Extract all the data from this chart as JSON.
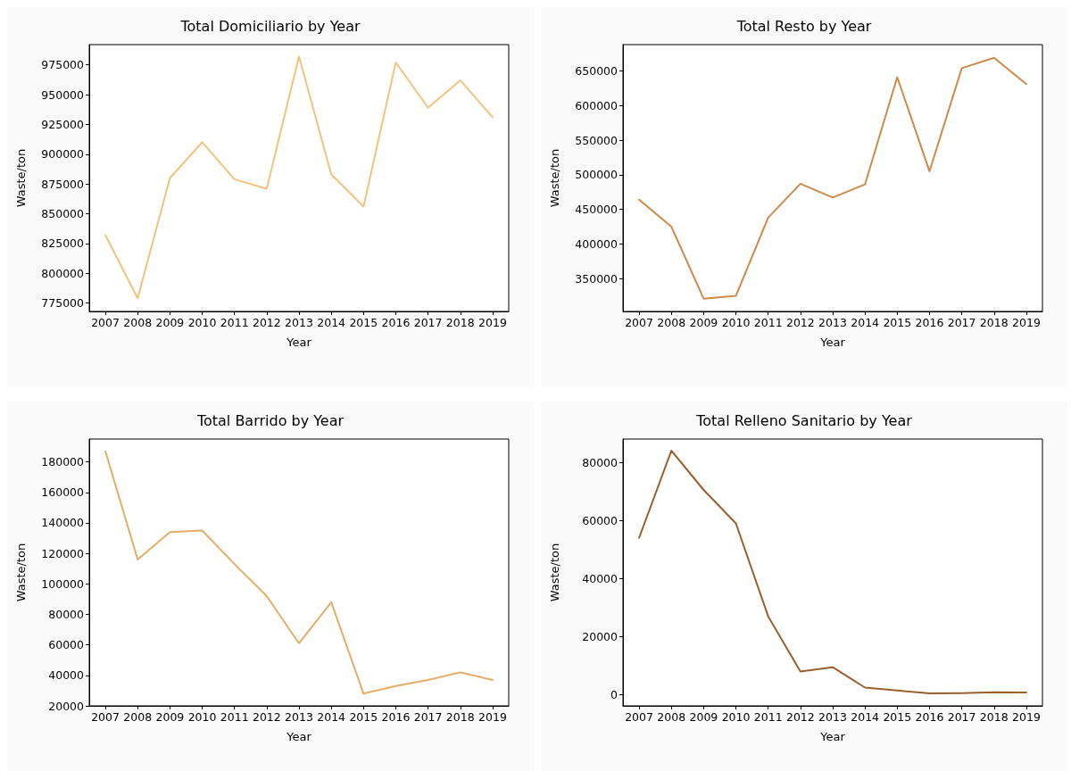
{
  "chart_data": [
    {
      "type": "line",
      "title": "Total Domiciliario by Year",
      "xlabel": "Year",
      "ylabel": "Waste/ton",
      "categories": [
        "2007",
        "2008",
        "2009",
        "2010",
        "2011",
        "2012",
        "2013",
        "2014",
        "2015",
        "2016",
        "2017",
        "2018",
        "2019"
      ],
      "series": [
        {
          "color": "#f2c27f",
          "values": [
            832000,
            779000,
            880000,
            910000,
            879000,
            871000,
            982000,
            883000,
            856000,
            977000,
            939000,
            962000,
            931000
          ]
        }
      ],
      "ylim": [
        768000,
        992000
      ],
      "yticks": [
        775000,
        800000,
        825000,
        850000,
        875000,
        900000,
        925000,
        950000,
        975000
      ],
      "grid": false,
      "marker": "none",
      "line_style": "solid"
    },
    {
      "type": "line",
      "title": "Total Resto by Year",
      "xlabel": "Year",
      "ylabel": "Waste/ton",
      "categories": [
        "2007",
        "2008",
        "2009",
        "2010",
        "2011",
        "2012",
        "2013",
        "2014",
        "2015",
        "2016",
        "2017",
        "2018",
        "2019"
      ],
      "series": [
        {
          "color": "#cc8b4a",
          "values": [
            464000,
            425000,
            321000,
            325000,
            438000,
            487000,
            467000,
            486000,
            641000,
            505000,
            654000,
            669000,
            631000
          ]
        }
      ],
      "ylim": [
        302500,
        688000
      ],
      "yticks": [
        350000,
        400000,
        450000,
        500000,
        550000,
        600000,
        650000
      ],
      "grid": false,
      "marker": "none",
      "line_style": "solid"
    },
    {
      "type": "line",
      "title": "Total Barrido by Year",
      "xlabel": "Year",
      "ylabel": "Waste/ton",
      "categories": [
        "2007",
        "2008",
        "2009",
        "2010",
        "2011",
        "2012",
        "2013",
        "2014",
        "2015",
        "2016",
        "2017",
        "2018",
        "2019"
      ],
      "series": [
        {
          "color": "#e5ad65",
          "values": [
            187000,
            116000,
            134000,
            135000,
            113000,
            92000,
            61000,
            88000,
            28000,
            33000,
            37000,
            42000,
            37000
          ]
        }
      ],
      "ylim": [
        20000,
        195000
      ],
      "yticks": [
        20000,
        40000,
        60000,
        80000,
        100000,
        120000,
        140000,
        160000,
        180000
      ],
      "grid": false,
      "marker": "none",
      "line_style": "solid"
    },
    {
      "type": "line",
      "title": "Total Relleno Sanitario by Year",
      "xlabel": "Year",
      "ylabel": "Waste/ton",
      "categories": [
        "2007",
        "2008",
        "2009",
        "2010",
        "2011",
        "2012",
        "2013",
        "2014",
        "2015",
        "2016",
        "2017",
        "2018",
        "2019"
      ],
      "series": [
        {
          "color": "#99602e",
          "values": [
            54000,
            84000,
            70500,
            59000,
            27000,
            8000,
            9500,
            2500,
            1500,
            500,
            600,
            900,
            800
          ]
        }
      ],
      "ylim": [
        -3800,
        88000
      ],
      "yticks": [
        0,
        20000,
        40000,
        60000,
        80000
      ],
      "grid": false,
      "marker": "none",
      "line_style": "solid"
    }
  ]
}
